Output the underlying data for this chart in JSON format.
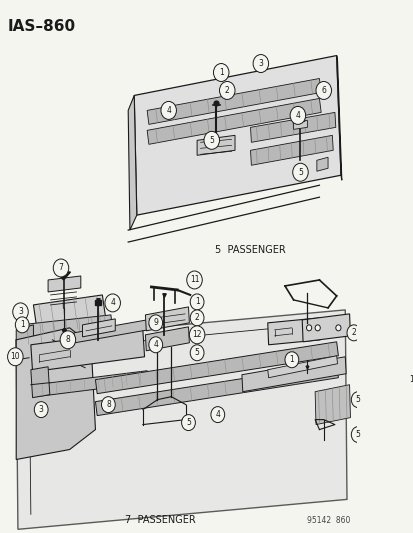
{
  "title": "IAS–860",
  "part_number": "95142  860",
  "label_5pass": "5  PASSENGER",
  "label_7pass": "7  PASSENGER",
  "bg_color": "#f5f5f0",
  "line_color": "#1a1a1a",
  "text_color": "#1a1a1a",
  "figsize": [
    4.14,
    5.33
  ],
  "dpi": 100
}
